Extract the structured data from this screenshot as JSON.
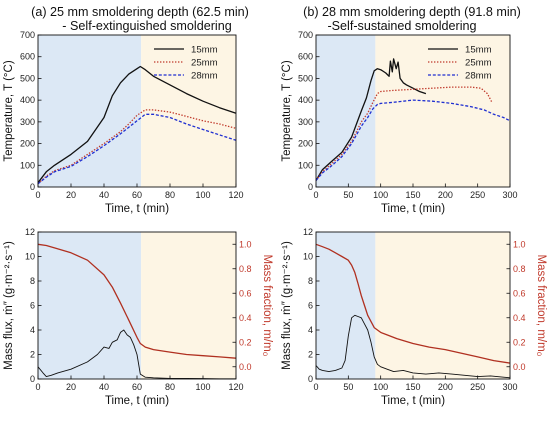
{
  "panels": [
    {
      "title_line1": "(a) 25 mm smoldering depth (62.5 min)",
      "title_line2": "- Self-extinguished smoldering"
    },
    {
      "title_line1": "(b) 28 mm smoldering depth (91.8 min)",
      "title_line2": "-Self-sustained smoldering"
    }
  ],
  "colors": {
    "smolder_region": "#dce8f5",
    "post_region": "#fdf5e4",
    "s15": "#111111",
    "s25": "#c0392b",
    "s28": "#1f2fd1",
    "mass_flux": "#111111",
    "mass_fraction": "#b03020"
  },
  "chart_data": [
    {
      "type": "line",
      "panel": "a-top",
      "ylabel": "Temperature, T (°C)",
      "xlabel": "Time, t (min)",
      "xlim": [
        0,
        120
      ],
      "ylim": [
        0,
        700
      ],
      "xticks": [
        0,
        20,
        40,
        60,
        80,
        100,
        120
      ],
      "yticks": [
        0,
        100,
        200,
        300,
        400,
        500,
        600,
        700
      ],
      "shade_end": 62.5,
      "legend": "top-right",
      "series": [
        {
          "name": "15mm",
          "style": "solid",
          "x": [
            0,
            5,
            10,
            20,
            30,
            40,
            45,
            50,
            55,
            60,
            62,
            65,
            70,
            80,
            90,
            100,
            110,
            120
          ],
          "y": [
            20,
            70,
            100,
            150,
            210,
            320,
            420,
            480,
            520,
            545,
            555,
            540,
            510,
            470,
            430,
            395,
            365,
            340
          ]
        },
        {
          "name": "25mm",
          "style": "dotted",
          "x": [
            0,
            5,
            10,
            20,
            30,
            40,
            50,
            55,
            60,
            65,
            70,
            80,
            90,
            100,
            110,
            120
          ],
          "y": [
            15,
            50,
            75,
            100,
            150,
            200,
            255,
            290,
            330,
            355,
            355,
            345,
            325,
            305,
            290,
            270
          ]
        },
        {
          "name": "28mm",
          "style": "dashed",
          "x": [
            0,
            5,
            10,
            20,
            30,
            40,
            50,
            55,
            60,
            65,
            70,
            80,
            90,
            100,
            110,
            120
          ],
          "y": [
            15,
            45,
            70,
            95,
            140,
            190,
            245,
            275,
            305,
            335,
            335,
            320,
            290,
            265,
            240,
            215
          ]
        }
      ]
    },
    {
      "type": "line",
      "panel": "b-top",
      "ylabel": "Temperature, T (°C)",
      "xlabel": "Time, t (min)",
      "xlim": [
        0,
        300
      ],
      "ylim": [
        0,
        700
      ],
      "xticks": [
        0,
        50,
        100,
        150,
        200,
        250,
        300
      ],
      "yticks": [
        0,
        100,
        200,
        300,
        400,
        500,
        600,
        700
      ],
      "shade_end": 91.8,
      "legend": "top-right",
      "series": [
        {
          "name": "15mm",
          "style": "solid",
          "x": [
            0,
            10,
            25,
            40,
            55,
            70,
            78,
            85,
            90,
            95,
            100,
            108,
            113,
            115,
            118,
            120,
            124,
            127,
            130,
            135,
            140,
            150,
            160,
            170
          ],
          "y": [
            30,
            80,
            120,
            160,
            230,
            350,
            410,
            490,
            535,
            545,
            540,
            525,
            510,
            580,
            530,
            590,
            545,
            575,
            500,
            480,
            470,
            455,
            440,
            430
          ]
        },
        {
          "name": "25mm",
          "style": "dotted",
          "x": [
            0,
            10,
            25,
            40,
            55,
            70,
            80,
            88,
            95,
            100,
            120,
            150,
            180,
            210,
            240,
            255,
            265,
            272
          ],
          "y": [
            30,
            70,
            110,
            150,
            210,
            300,
            340,
            390,
            430,
            440,
            445,
            450,
            455,
            460,
            460,
            455,
            430,
            390
          ]
        },
        {
          "name": "28mm",
          "style": "dashed",
          "x": [
            0,
            10,
            25,
            40,
            55,
            70,
            80,
            88,
            95,
            100,
            120,
            150,
            180,
            210,
            240,
            260,
            275,
            290,
            300
          ],
          "y": [
            30,
            65,
            100,
            140,
            200,
            280,
            320,
            360,
            380,
            385,
            390,
            400,
            395,
            385,
            370,
            355,
            335,
            320,
            305
          ]
        }
      ]
    },
    {
      "type": "line",
      "panel": "a-bottom",
      "ylabel": "Mass flux, ṁ″ (g·m⁻²·s⁻¹)",
      "y2label": "Mass fraction, m/m₀",
      "xlabel": "Time, t (min)",
      "xlim": [
        0,
        120
      ],
      "ylim": [
        0,
        12
      ],
      "y2lim": [
        -0.1,
        1.1
      ],
      "xticks": [
        0,
        20,
        40,
        60,
        80,
        100,
        120
      ],
      "yticks": [
        0,
        2,
        4,
        6,
        8,
        10,
        12
      ],
      "y2ticks": [
        0.0,
        0.2,
        0.4,
        0.6,
        0.8,
        1.0
      ],
      "shade_end": 62.5,
      "series": [
        {
          "name": "Mass flux",
          "axis": "left",
          "x": [
            0,
            3,
            5,
            8,
            12,
            20,
            30,
            36,
            40,
            43,
            45,
            48,
            50,
            52,
            54,
            56,
            58,
            60,
            62,
            65,
            70,
            80,
            90,
            100,
            110,
            120
          ],
          "y": [
            1.0,
            0.5,
            0.2,
            0.3,
            0.5,
            0.8,
            1.4,
            2.0,
            2.6,
            2.5,
            3.0,
            3.2,
            3.8,
            4.0,
            3.6,
            3.4,
            2.8,
            2.0,
            0.4,
            0.15,
            0.1,
            0.05,
            0.05,
            0.03,
            0.02,
            0.02
          ]
        },
        {
          "name": "Mass fraction",
          "axis": "right",
          "x": [
            0,
            5,
            10,
            20,
            30,
            40,
            45,
            50,
            55,
            60,
            62,
            65,
            70,
            80,
            90,
            100,
            110,
            120
          ],
          "y": [
            1.0,
            0.99,
            0.97,
            0.93,
            0.87,
            0.75,
            0.65,
            0.52,
            0.38,
            0.24,
            0.19,
            0.16,
            0.14,
            0.12,
            0.1,
            0.09,
            0.08,
            0.07
          ]
        }
      ]
    },
    {
      "type": "line",
      "panel": "b-bottom",
      "ylabel": "Mass flux, ṁ″ (g·m⁻²·s⁻¹)",
      "y2label": "Mass fraction, m/m₀",
      "xlabel": "Time, t (min)",
      "xlim": [
        0,
        300
      ],
      "ylim": [
        0,
        12
      ],
      "y2lim": [
        -0.1,
        1.1
      ],
      "xticks": [
        0,
        50,
        100,
        150,
        200,
        250,
        300
      ],
      "yticks": [
        0,
        2,
        4,
        6,
        8,
        10,
        12
      ],
      "y2ticks": [
        0.0,
        0.2,
        0.4,
        0.6,
        0.8,
        1.0
      ],
      "shade_end": 91.8,
      "series": [
        {
          "name": "Mass flux",
          "axis": "left",
          "x": [
            0,
            5,
            10,
            20,
            30,
            40,
            45,
            50,
            55,
            60,
            65,
            70,
            75,
            80,
            85,
            90,
            95,
            100,
            110,
            120,
            135,
            150,
            170,
            190,
            210,
            230,
            250,
            270,
            290,
            300
          ],
          "y": [
            1.1,
            0.8,
            0.7,
            0.6,
            0.7,
            0.9,
            1.5,
            3.5,
            5.0,
            5.2,
            5.1,
            5.0,
            4.5,
            4.0,
            3.0,
            1.8,
            1.2,
            1.0,
            0.8,
            0.6,
            0.7,
            0.5,
            0.4,
            0.5,
            0.4,
            0.3,
            0.2,
            0.25,
            0.15,
            0.1
          ]
        },
        {
          "name": "Mass fraction",
          "axis": "right",
          "x": [
            0,
            10,
            20,
            30,
            40,
            50,
            55,
            60,
            65,
            70,
            75,
            80,
            90,
            100,
            110,
            125,
            150,
            175,
            200,
            225,
            250,
            275,
            300
          ],
          "y": [
            1.0,
            0.98,
            0.96,
            0.93,
            0.9,
            0.87,
            0.83,
            0.77,
            0.68,
            0.58,
            0.5,
            0.42,
            0.32,
            0.28,
            0.26,
            0.23,
            0.19,
            0.16,
            0.14,
            0.11,
            0.08,
            0.05,
            0.03
          ]
        }
      ]
    }
  ]
}
